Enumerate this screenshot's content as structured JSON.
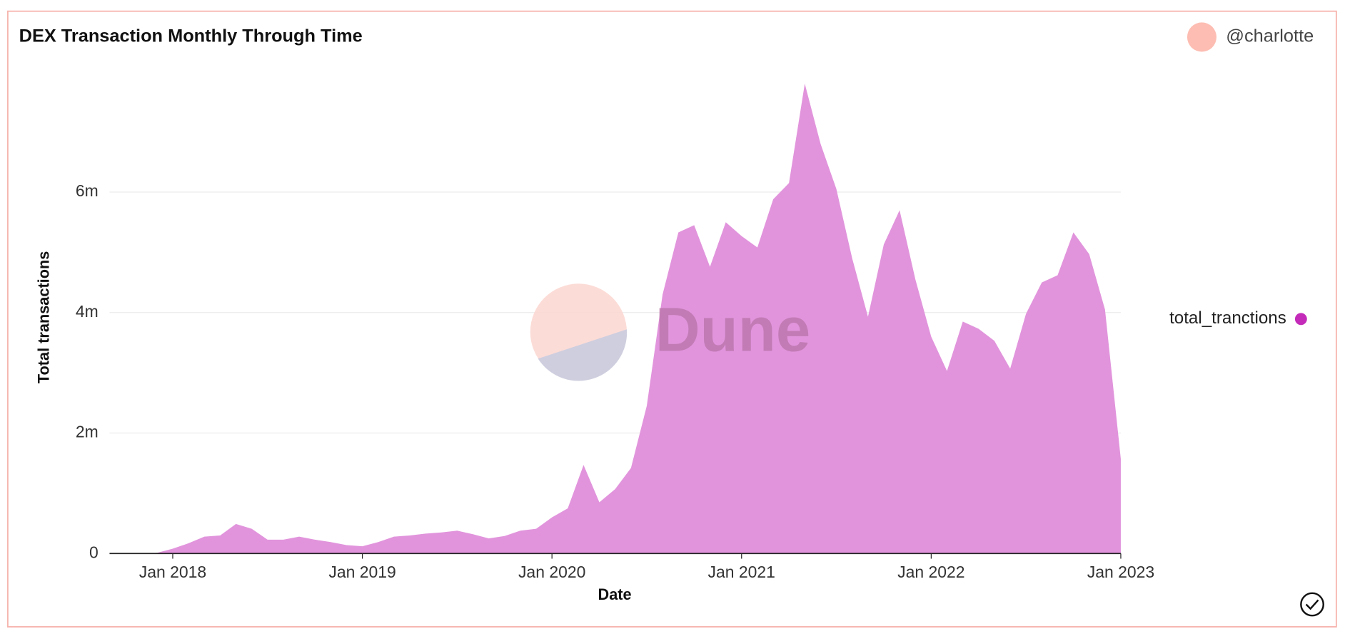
{
  "header": {
    "author": "@charlotte"
  },
  "watermark": "Dune",
  "chart_data": {
    "type": "area",
    "title": "DEX Transaction Monthly Through Time",
    "xlabel": "Date",
    "ylabel": "Total transactions",
    "x": [
      "2017-09",
      "2017-10",
      "2017-11",
      "2017-12",
      "2018-01",
      "2018-02",
      "2018-03",
      "2018-04",
      "2018-05",
      "2018-06",
      "2018-07",
      "2018-08",
      "2018-09",
      "2018-10",
      "2018-11",
      "2018-12",
      "2019-01",
      "2019-02",
      "2019-03",
      "2019-04",
      "2019-05",
      "2019-06",
      "2019-07",
      "2019-08",
      "2019-09",
      "2019-10",
      "2019-11",
      "2019-12",
      "2020-01",
      "2020-02",
      "2020-03",
      "2020-04",
      "2020-05",
      "2020-06",
      "2020-07",
      "2020-08",
      "2020-09",
      "2020-10",
      "2020-11",
      "2020-12",
      "2021-01",
      "2021-02",
      "2021-03",
      "2021-04",
      "2021-05",
      "2021-06",
      "2021-07",
      "2021-08",
      "2021-09",
      "2021-10",
      "2021-11",
      "2021-12",
      "2022-01",
      "2022-02",
      "2022-03",
      "2022-04",
      "2022-05",
      "2022-06",
      "2022-07",
      "2022-08",
      "2022-09",
      "2022-10",
      "2022-11",
      "2022-12",
      "2023-01"
    ],
    "series": [
      {
        "name": "total_tranctions",
        "color": "#e194dc",
        "values": [
          0,
          0,
          0,
          10000,
          80000,
          170000,
          280000,
          300000,
          490000,
          410000,
          230000,
          230000,
          280000,
          230000,
          190000,
          140000,
          120000,
          190000,
          280000,
          300000,
          330000,
          350000,
          380000,
          320000,
          250000,
          290000,
          380000,
          410000,
          600000,
          750000,
          1470000,
          850000,
          1070000,
          1420000,
          2450000,
          4300000,
          5330000,
          5450000,
          4760000,
          5500000,
          5270000,
          5080000,
          5880000,
          6150000,
          7800000,
          6800000,
          6050000,
          4900000,
          3930000,
          5130000,
          5700000,
          4550000,
          3600000,
          3030000,
          3850000,
          3730000,
          3530000,
          3070000,
          3980000,
          4500000,
          4620000,
          5330000,
          4970000,
          4050000,
          1570000
        ]
      }
    ],
    "legend_color": "#c42bb9",
    "xlim": [
      "2017-09",
      "2023-01"
    ],
    "xticks": [
      {
        "value": "2018-01",
        "label": "Jan 2018"
      },
      {
        "value": "2019-01",
        "label": "Jan 2019"
      },
      {
        "value": "2020-01",
        "label": "Jan 2020"
      },
      {
        "value": "2021-01",
        "label": "Jan 2021"
      },
      {
        "value": "2022-01",
        "label": "Jan 2022"
      },
      {
        "value": "2023-01",
        "label": "Jan 2023"
      }
    ],
    "ylim": [
      0,
      7900000
    ],
    "yticks": [
      0,
      {
        "value": 2000000,
        "label": "2m"
      },
      {
        "value": 4000000,
        "label": "4m"
      },
      {
        "value": 6000000,
        "label": "6m"
      }
    ],
    "grid": true
  }
}
